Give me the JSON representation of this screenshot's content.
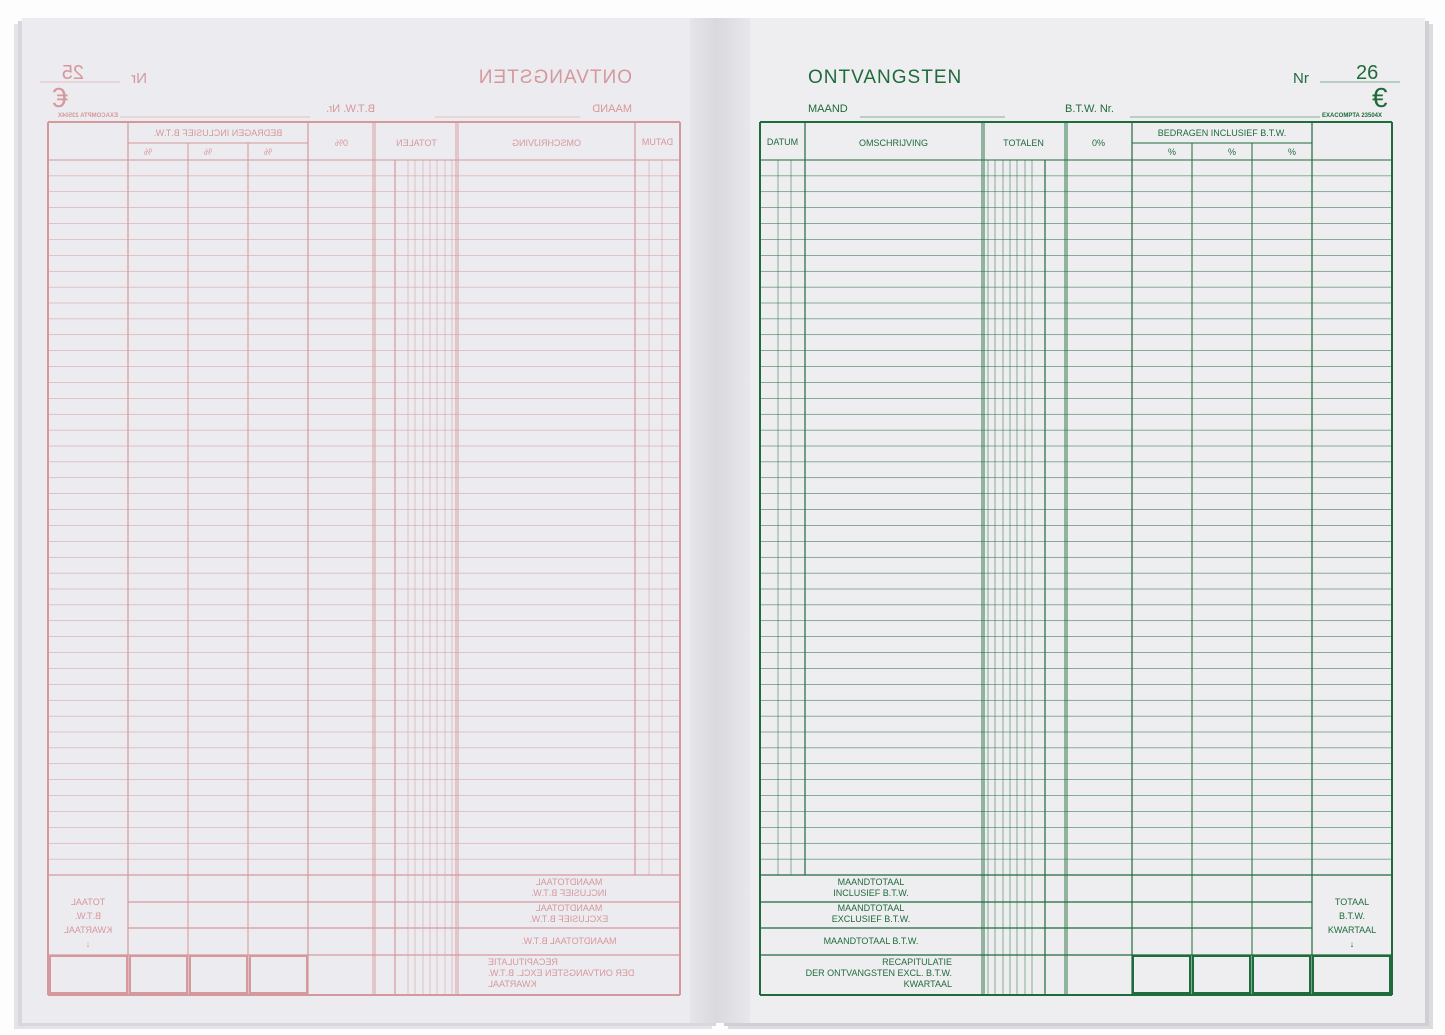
{
  "form": {
    "title": "ONTVANGSTEN",
    "nr_label": "Nr",
    "currency": "€",
    "maand_label": "MAAND",
    "btw_label": "B.T.W. Nr.",
    "reference": "EXACOMPTA 23504X",
    "columns": {
      "datum": "DATUM",
      "omschrijving": "OMSCHRIJVING",
      "totalen": "TOTALEN",
      "zero": "0%",
      "bedragen": "BEDRAGEN INCLUSIEF B.T.W.",
      "pct": "%"
    },
    "footer": {
      "row1": "MAANDTOTAAL\nINCLUSIEF B.T.W.",
      "row2": "MAANDTOTAAL\nEXCLUSIEF B.T.W.",
      "row3": "MAANDTOTAAL B.T.W.",
      "row4": "RECAPITULATIE\nDER ONTVANGSTEN EXCL. B.T.W.\nKWARTAAL",
      "totaal": "TOTAAL\nB.T.W.\nKWARTAAL\n↓"
    }
  },
  "left_page": {
    "number": "25",
    "ink_color": "#d28a8e"
  },
  "right_page": {
    "number": "26",
    "ink_color": "#1f6b3c"
  }
}
